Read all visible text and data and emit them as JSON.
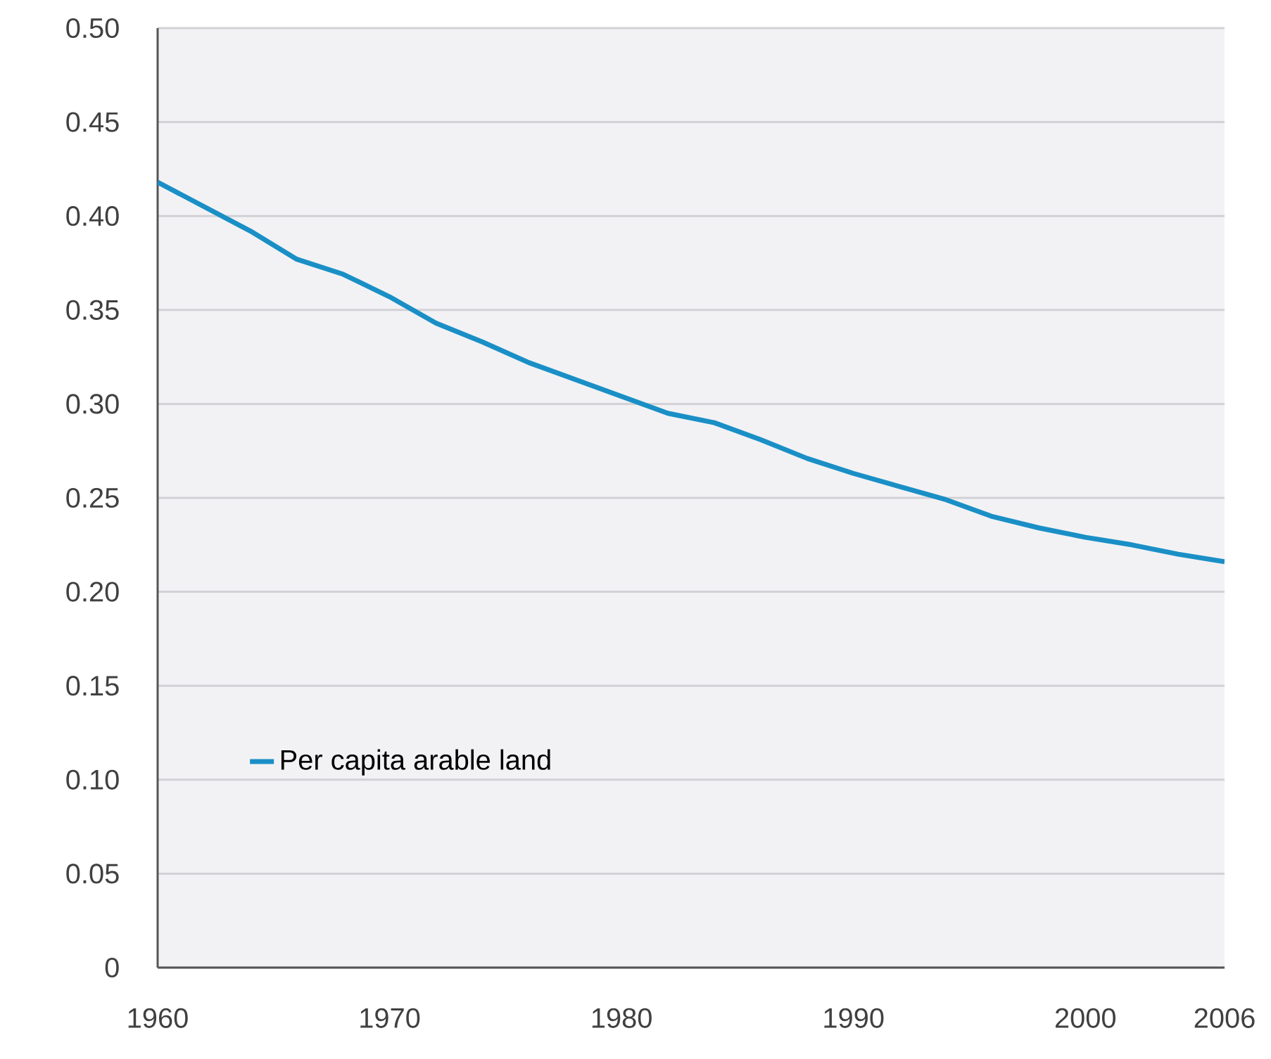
{
  "chart_data": {
    "type": "line",
    "x": [
      1960,
      1962,
      1964,
      1966,
      1968,
      1970,
      1972,
      1974,
      1976,
      1978,
      1980,
      1982,
      1984,
      1986,
      1988,
      1990,
      1992,
      1994,
      1996,
      1998,
      2000,
      2002,
      2004,
      2006
    ],
    "series": [
      {
        "name": "Per capita arable land",
        "color": "#1a8fc6",
        "values": [
          0.418,
          0.405,
          0.392,
          0.377,
          0.369,
          0.357,
          0.343,
          0.333,
          0.322,
          0.313,
          0.304,
          0.295,
          0.29,
          0.281,
          0.271,
          0.263,
          0.256,
          0.249,
          0.24,
          0.234,
          0.229,
          0.225,
          0.22,
          0.216
        ]
      }
    ],
    "xlim": [
      1960,
      2006
    ],
    "xticks": [
      1960,
      1970,
      1980,
      1990,
      2000,
      2006
    ],
    "ylim": [
      0,
      0.5
    ],
    "yticks": [
      0,
      {
        "value": 0.05,
        "label": "0.05"
      },
      {
        "value": 0.1,
        "label": "0.10"
      },
      {
        "value": 0.15,
        "label": "0.15"
      },
      {
        "value": 0.2,
        "label": "0.20"
      },
      {
        "value": 0.25,
        "label": "0.25"
      },
      {
        "value": 0.3,
        "label": "0.30"
      },
      {
        "value": 0.35,
        "label": "0.35"
      },
      {
        "value": 0.4,
        "label": "0.40"
      },
      {
        "value": 0.45,
        "label": "0.45"
      },
      {
        "value": 0.5,
        "label": "0.50"
      }
    ],
    "grid": "y",
    "legend": "bottom left",
    "marker": "none",
    "line_style": "solid"
  }
}
